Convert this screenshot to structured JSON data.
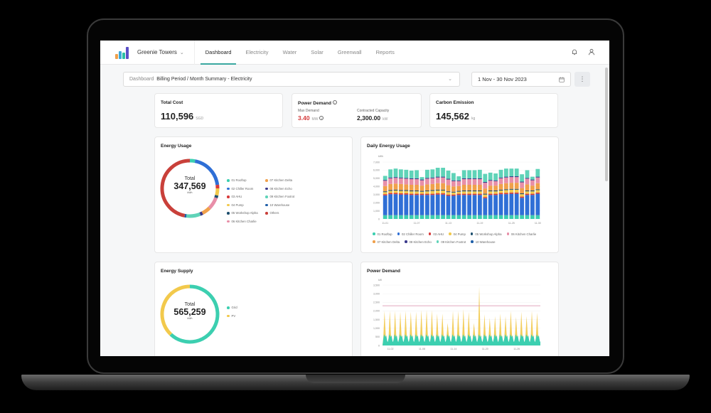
{
  "app": {
    "property_name": "Greenie Towers",
    "logo_colors": [
      "#f0a04b",
      "#3aa8d8",
      "#2bbfa4",
      "#5b4fc7"
    ]
  },
  "nav": {
    "tabs": [
      {
        "label": "Dashboard",
        "active": true
      },
      {
        "label": "Electricity",
        "active": false
      },
      {
        "label": "Water",
        "active": false
      },
      {
        "label": "Solar",
        "active": false
      },
      {
        "label": "Greenwall",
        "active": false
      },
      {
        "label": "Reports",
        "active": false
      }
    ],
    "icons": [
      "bell-icon",
      "user-icon"
    ]
  },
  "filter": {
    "prefix": "Dashboard",
    "value": "Billing Period / Month Summary - Electricity"
  },
  "date_range": "1 Nov - 30 Nov 2023",
  "kpis": {
    "total_cost": {
      "title": "Total Cost",
      "value": "110,596",
      "unit": "SGD"
    },
    "power_demand": {
      "title": "Power Demand",
      "max_label": "Max Demand",
      "max_value": "3.40",
      "max_unit": "MW",
      "capacity_label": "Contracted Capacity",
      "capacity_value": "2,300.00",
      "capacity_unit": "kW"
    },
    "carbon": {
      "title": "Carbon Emission",
      "value": "145,562",
      "unit": "kg"
    }
  },
  "energy_usage": {
    "title": "Energy Usage",
    "total_label": "Total",
    "total_value": "347,569",
    "total_unit": "kWh",
    "legend_col1": [
      {
        "label": "01 Rooftop",
        "color": "#3ccfb0"
      },
      {
        "label": "02 Chiller Room",
        "color": "#2f6fd6"
      },
      {
        "label": "03 AHU",
        "color": "#d83a3a"
      },
      {
        "label": "04 Pump",
        "color": "#f2c94c"
      },
      {
        "label": "05 Workshop Alpha",
        "color": "#1e4f6e"
      },
      {
        "label": "06 Kitchen Charlie",
        "color": "#e88fa8"
      }
    ],
    "legend_col2": [
      {
        "label": "07 Kitchen Delta",
        "color": "#f0a04b"
      },
      {
        "label": "08 Kitchen Echo",
        "color": "#3b3a8c"
      },
      {
        "label": "09 Kitchen Foxtrot",
        "color": "#5fd3b8"
      },
      {
        "label": "10 Warehouse",
        "color": "#1f5fa8"
      },
      {
        "label": "Others",
        "color": "#c9403a"
      }
    ]
  },
  "energy_supply": {
    "title": "Energy Supply",
    "total_label": "Total",
    "total_value": "565,259",
    "total_unit": "kWh",
    "legend": [
      {
        "label": "Grid",
        "color": "#3ccfb0"
      },
      {
        "label": "PV",
        "color": "#f2c94c"
      }
    ]
  },
  "daily_energy": {
    "title": "Daily Energy Usage",
    "legend": [
      {
        "label": "01 Rooftop",
        "color": "#3ccfb0"
      },
      {
        "label": "02 Chiller Room",
        "color": "#2f6fd6"
      },
      {
        "label": "03 AHU",
        "color": "#d83a3a"
      },
      {
        "label": "04 Pump",
        "color": "#f2c94c"
      },
      {
        "label": "05 Workshop Alpha",
        "color": "#1e4f6e"
      },
      {
        "label": "06 Kitchen Charlie",
        "color": "#e88fa8"
      },
      {
        "label": "07 Kitchen Delta",
        "color": "#f0a04b"
      },
      {
        "label": "08 Kitchen Echo",
        "color": "#3b3a8c"
      },
      {
        "label": "09 Kitchen Foxtrot",
        "color": "#5fd3b8"
      },
      {
        "label": "10 Warehouse",
        "color": "#1f5fa8"
      }
    ]
  },
  "power_demand_chart": {
    "title": "Power Demand"
  },
  "chart_data": [
    {
      "type": "pie",
      "title": "Energy Usage",
      "categories": [
        "01 Rooftop",
        "02 Chiller Room",
        "03 AHU",
        "04 Pump",
        "05 Workshop Alpha",
        "06 Kitchen Charlie",
        "07 Kitchen Delta",
        "08 Kitchen Echo",
        "09 Kitchen Foxtrot",
        "10 Warehouse",
        "Others"
      ],
      "values": [
        3,
        20,
        2,
        4,
        1.5,
        7,
        5,
        1.5,
        8,
        1,
        47
      ],
      "total": 347569,
      "unit": "kWh"
    },
    {
      "type": "pie",
      "title": "Energy Supply",
      "categories": [
        "Grid",
        "PV"
      ],
      "values": [
        62,
        38
      ],
      "total": 565259,
      "unit": "kWh"
    },
    {
      "type": "bar",
      "stacked": true,
      "title": "Daily Energy Usage",
      "ylabel": "kWh",
      "ylim": [
        0,
        7000
      ],
      "yticks": [
        "0",
        "1,000",
        "2,000",
        "3,000",
        "4,000",
        "5,000",
        "6,000",
        "7,000"
      ],
      "xticks": [
        "11-01",
        "11-07",
        "11-13",
        "11-19",
        "11-25",
        "11-30"
      ],
      "categories": [
        "11-01",
        "11-02",
        "11-03",
        "11-04",
        "11-05",
        "11-06",
        "11-07",
        "11-08",
        "11-09",
        "11-10",
        "11-11",
        "11-12",
        "11-13",
        "11-14",
        "11-15",
        "11-16",
        "11-17",
        "11-18",
        "11-19",
        "11-20",
        "11-21",
        "11-22",
        "11-23",
        "11-24",
        "11-25",
        "11-26",
        "11-27",
        "11-28",
        "11-29",
        "11-30"
      ],
      "totals": [
        5700,
        6400,
        6500,
        6400,
        6350,
        6300,
        6300,
        5450,
        6400,
        6450,
        6600,
        6600,
        6450,
        6000,
        5600,
        6300,
        6300,
        6300,
        6350,
        5800,
        5800,
        5750,
        6350,
        6500,
        6500,
        6500,
        5800,
        6350,
        5500,
        6450
      ],
      "series": [
        {
          "name": "01 Rooftop",
          "values": [
            450,
            450,
            450,
            450,
            450,
            450,
            450,
            450,
            450,
            450,
            450,
            450,
            450,
            450,
            450,
            450,
            450,
            450,
            450,
            450,
            450,
            450,
            450,
            450,
            450,
            450,
            450,
            450,
            450,
            450
          ]
        },
        {
          "name": "02 Chiller Room",
          "values": [
            2400,
            2550,
            2550,
            2500,
            2500,
            2450,
            2450,
            2450,
            2450,
            2450,
            2500,
            2500,
            2350,
            2350,
            2450,
            2450,
            2450,
            2450,
            2450,
            2050,
            2450,
            2450,
            2550,
            2550,
            2600,
            2600,
            2100,
            2450,
            2450,
            2600
          ]
        },
        {
          "name": "03 AHU",
          "values": [
            150,
            150,
            150,
            150,
            150,
            150,
            150,
            150,
            150,
            150,
            150,
            150,
            150,
            150,
            150,
            150,
            150,
            150,
            150,
            150,
            150,
            150,
            150,
            150,
            150,
            150,
            150,
            150,
            150,
            150
          ]
        },
        {
          "name": "04 Pump",
          "values": [
            250,
            250,
            300,
            300,
            300,
            300,
            300,
            250,
            300,
            350,
            350,
            350,
            300,
            250,
            250,
            300,
            300,
            300,
            300,
            300,
            300,
            300,
            300,
            350,
            350,
            350,
            300,
            300,
            300,
            300
          ]
        },
        {
          "name": "05 Workshop Alpha",
          "values": [
            100,
            100,
            100,
            100,
            100,
            100,
            100,
            100,
            100,
            100,
            100,
            100,
            100,
            100,
            100,
            100,
            100,
            100,
            100,
            100,
            100,
            100,
            100,
            100,
            100,
            100,
            100,
            100,
            100,
            100
          ]
        },
        {
          "name": "06 Kitchen Charlie",
          "values": [
            650,
            700,
            700,
            700,
            700,
            700,
            700,
            650,
            700,
            700,
            700,
            700,
            700,
            650,
            600,
            700,
            700,
            700,
            700,
            700,
            600,
            550,
            700,
            700,
            700,
            700,
            700,
            700,
            650,
            700
          ]
        },
        {
          "name": "07 Kitchen Delta",
          "values": [
            650,
            750,
            750,
            750,
            700,
            700,
            700,
            650,
            750,
            750,
            800,
            800,
            750,
            650,
            600,
            700,
            700,
            700,
            700,
            650,
            600,
            600,
            700,
            750,
            750,
            750,
            650,
            750,
            600,
            750
          ]
        },
        {
          "name": "08 Kitchen Echo",
          "values": [
            100,
            100,
            100,
            100,
            100,
            100,
            100,
            100,
            100,
            100,
            100,
            100,
            100,
            100,
            100,
            100,
            100,
            100,
            100,
            100,
            100,
            100,
            100,
            100,
            100,
            100,
            100,
            100,
            100,
            100
          ]
        },
        {
          "name": "09 Kitchen Foxtrot",
          "values": [
            500,
            1000,
            1050,
            1000,
            1000,
            950,
            1000,
            300,
            1000,
            1000,
            1100,
            1100,
            1000,
            900,
            500,
            1000,
            1000,
            1000,
            1050,
            1000,
            900,
            850,
            950,
            1000,
            950,
            950,
            900,
            950,
            350,
            950
          ]
        },
        {
          "name": "10 Warehouse",
          "values": [
            50,
            50,
            50,
            50,
            50,
            50,
            50,
            50,
            50,
            50,
            50,
            50,
            50,
            50,
            50,
            50,
            50,
            50,
            50,
            50,
            50,
            50,
            50,
            50,
            50,
            50,
            50,
            50,
            50,
            50
          ]
        }
      ]
    },
    {
      "type": "area",
      "title": "Power Demand",
      "ylabel": "kW",
      "ylim": [
        0,
        3500
      ],
      "yticks": [
        "0",
        "500",
        "1,000",
        "1,500",
        "2,000",
        "2,500",
        "3,000",
        "3,500"
      ],
      "xticks": [
        "11-02",
        "11-08",
        "11-14",
        "11-20",
        "11-26"
      ],
      "contracted_capacity_kW": 2300,
      "series": [
        {
          "name": "Grid",
          "color": "#3ccfb0",
          "daily_peak": [
            650,
            650,
            650,
            650,
            650,
            650,
            650,
            650,
            650,
            650,
            650,
            650,
            650,
            650,
            650,
            650,
            650,
            650,
            650,
            650,
            650,
            650,
            650,
            650,
            650,
            650,
            650,
            650,
            650,
            650
          ]
        },
        {
          "name": "PV",
          "color": "#f2c94c",
          "daily_peak": [
            2000,
            2000,
            2000,
            1950,
            2000,
            1950,
            1950,
            2050,
            2050,
            2050,
            1850,
            1850,
            1300,
            2000,
            2000,
            2100,
            1950,
            1300,
            3400,
            1800,
            1600,
            1700,
            1850,
            1700,
            2000,
            1650,
            1950,
            1700,
            2000,
            1900
          ]
        }
      ]
    }
  ]
}
